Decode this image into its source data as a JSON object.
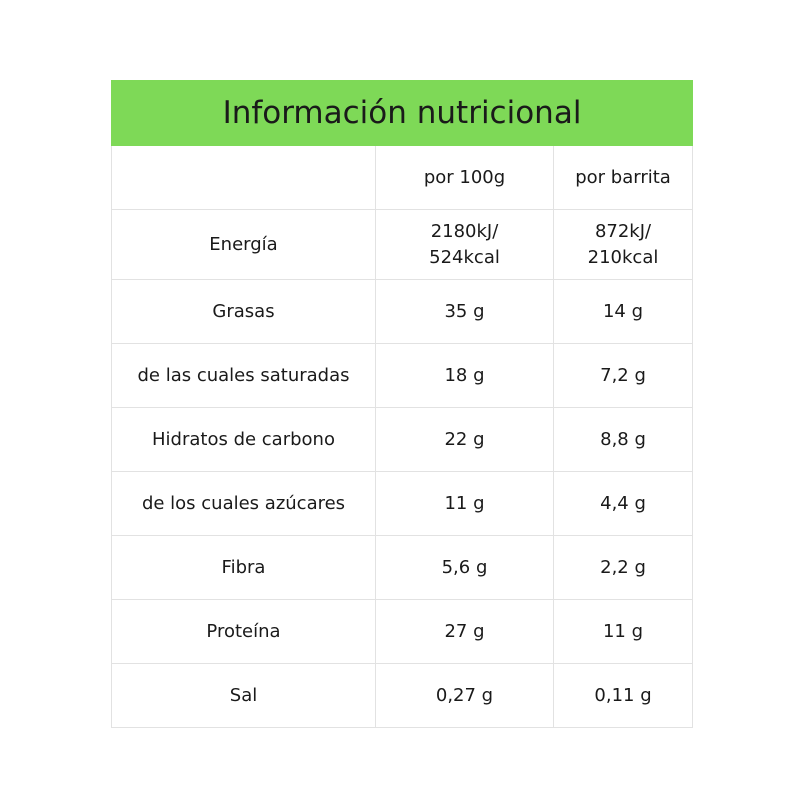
{
  "title": "Información nutricional",
  "header_color": "#7ED957",
  "columns": [
    "",
    "por 100g",
    "por barrita"
  ],
  "rows": [
    {
      "nutrient": "Energía",
      "per_100g": "2180kJ/\n524kcal",
      "per_bar": "872kJ/\n210kcal"
    },
    {
      "nutrient": "Grasas",
      "per_100g": "35 g",
      "per_bar": "14 g"
    },
    {
      "nutrient": "de las cuales saturadas",
      "per_100g": "18 g",
      "per_bar": "7,2 g"
    },
    {
      "nutrient": "Hidratos de carbono",
      "per_100g": "22 g",
      "per_bar": "8,8 g"
    },
    {
      "nutrient": "de los cuales azúcares",
      "per_100g": "11 g",
      "per_bar": "4,4 g"
    },
    {
      "nutrient": "Fibra",
      "per_100g": "5,6 g",
      "per_bar": "2,2 g"
    },
    {
      "nutrient": "Proteína",
      "per_100g": "27 g",
      "per_bar": "11 g"
    },
    {
      "nutrient": "Sal",
      "per_100g": "0,27 g",
      "per_bar": "0,11 g"
    }
  ]
}
